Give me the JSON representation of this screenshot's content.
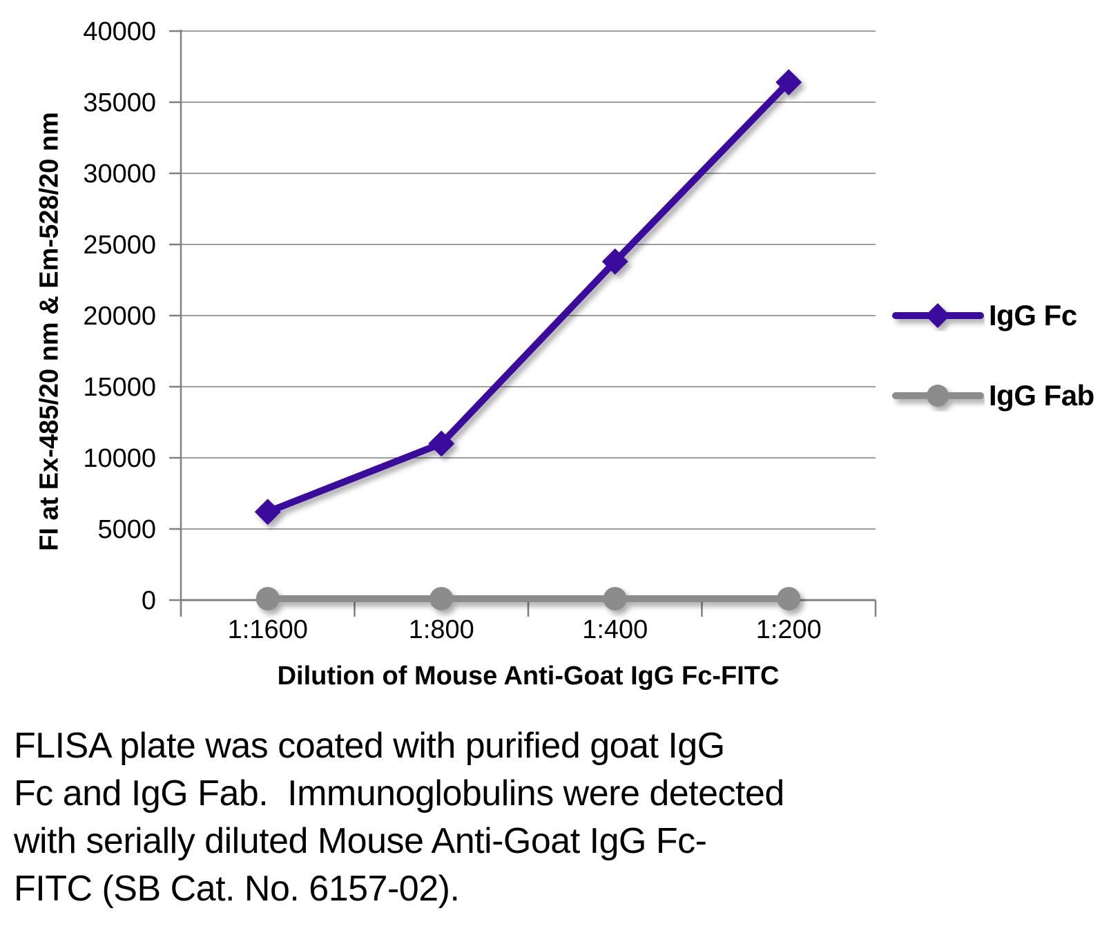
{
  "chart_data": {
    "type": "line",
    "categories": [
      "1:1600",
      "1:800",
      "1:400",
      "1:200"
    ],
    "series": [
      {
        "name": "IgG Fc",
        "color": "#3B0B9E",
        "marker": "diamond",
        "values": [
          6200,
          11000,
          23800,
          36400
        ]
      },
      {
        "name": "IgG Fab",
        "color": "#8C8C8C",
        "marker": "circle",
        "values": [
          100,
          100,
          100,
          100
        ]
      }
    ],
    "title": "",
    "xlabel": "Dilution of Mouse Anti-Goat IgG Fc-FITC",
    "ylabel": "FI at Ex-485/20 nm & Em-528/20 nm",
    "ylim": [
      0,
      40000
    ],
    "yticks": [
      0,
      5000,
      10000,
      15000,
      20000,
      25000,
      30000,
      35000,
      40000
    ],
    "grid": true,
    "grid_color": "#9D9D9D",
    "axis_color": "#808080",
    "legend_position": "right"
  },
  "caption": {
    "lines": [
      "FLISA plate was coated with purified goat IgG",
      "Fc and IgG Fab.  Immunoglobulins were detected",
      "with serially diluted Mouse Anti-Goat IgG Fc-",
      "FITC (SB Cat. No. 6157-02)."
    ]
  }
}
